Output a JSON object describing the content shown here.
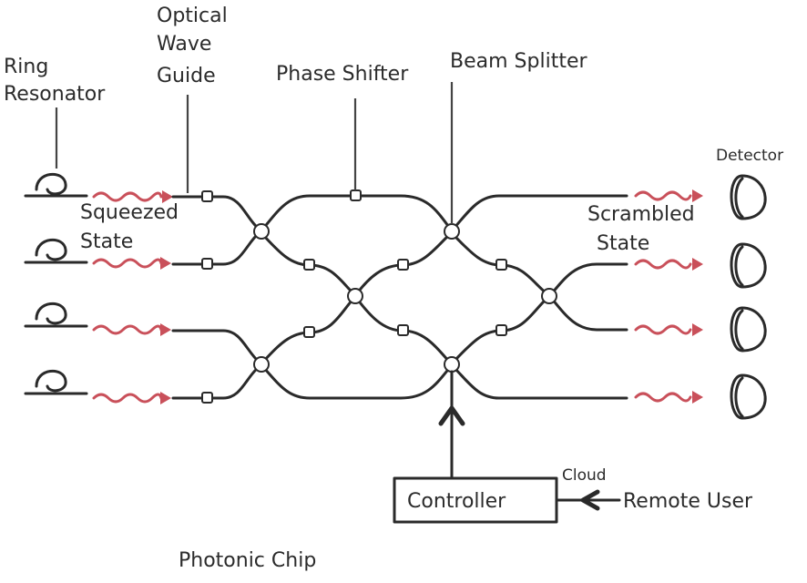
{
  "labels": {
    "ring_resonator": [
      "Ring",
      "Resonator"
    ],
    "optical_wave_guide": [
      "Optical",
      "Wave",
      "Guide"
    ],
    "phase_shifter": "Phase Shifter",
    "beam_splitter": "Beam Splitter",
    "squeezed_state": [
      "Squeezed",
      "State"
    ],
    "scrambled_state": [
      "Scrambled",
      "State"
    ],
    "detector": "Detector",
    "cloud": "Cloud",
    "controller": "Controller",
    "remote_user": "Remote User",
    "photonic_chip": "Photonic Chip"
  },
  "colors": {
    "line": "#2a2a2a",
    "wave": "#c9505a",
    "text": "#2b2b2b"
  },
  "counts": {
    "ring_resonators": 4,
    "detectors": 4,
    "beam_splitters": 6
  }
}
